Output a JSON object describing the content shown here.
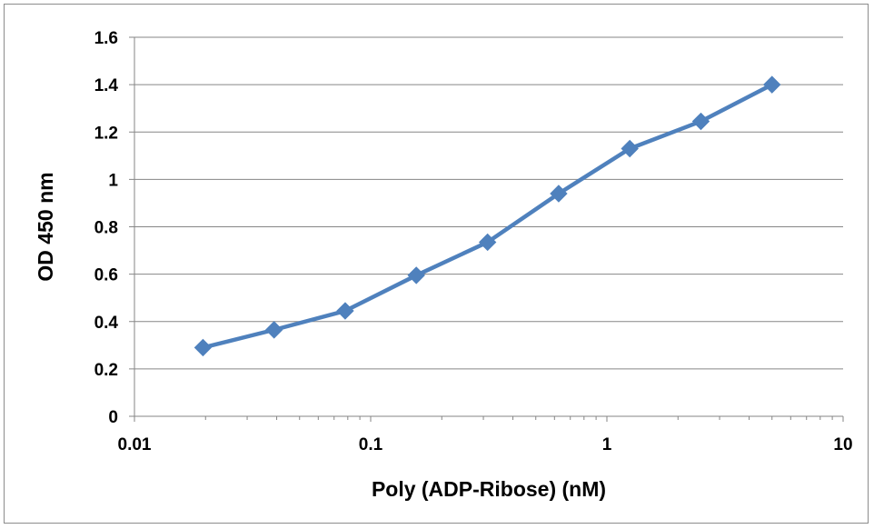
{
  "chart_data": {
    "type": "line",
    "title": "",
    "xlabel": "Poly (ADP-Ribose) (nM)",
    "ylabel": "OD 450 nm",
    "x_scale": "log",
    "xlim": [
      0.01,
      10
    ],
    "ylim": [
      0,
      1.6
    ],
    "x_ticks": [
      "0.01",
      "0.1",
      "1",
      "10"
    ],
    "y_ticks": [
      "0",
      "0.2",
      "0.4",
      "0.6",
      "0.8",
      "1",
      "1.2",
      "1.4",
      "1.6"
    ],
    "grid": "horizontal",
    "legend": "none",
    "series": [
      {
        "color": "#4f81bd",
        "marker": "diamond",
        "x": [
          0.0195,
          0.039,
          0.078,
          0.156,
          0.3125,
          0.625,
          1.25,
          2.5,
          5
        ],
        "y": [
          0.29,
          0.365,
          0.445,
          0.595,
          0.735,
          0.94,
          1.13,
          1.245,
          1.4
        ]
      }
    ]
  }
}
